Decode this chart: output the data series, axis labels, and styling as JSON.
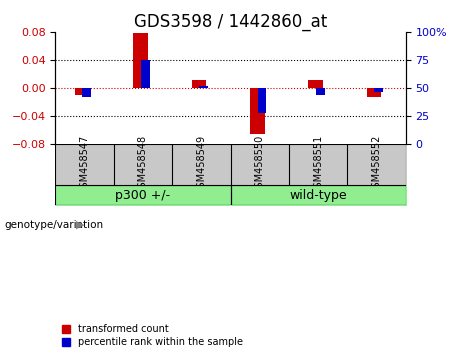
{
  "title": "GDS3598 / 1442860_at",
  "samples": [
    "GSM458547",
    "GSM458548",
    "GSM458549",
    "GSM458550",
    "GSM458551",
    "GSM458552"
  ],
  "red_values": [
    -0.01,
    0.079,
    0.012,
    -0.065,
    0.012,
    -0.012
  ],
  "blue_percentiles": [
    42,
    75,
    52,
    28,
    44,
    47
  ],
  "ylim_left": [
    -0.08,
    0.08
  ],
  "ylim_right": [
    0,
    100
  ],
  "left_yticks": [
    -0.08,
    -0.04,
    0,
    0.04,
    0.08
  ],
  "right_yticks": [
    0,
    25,
    50,
    75,
    100
  ],
  "right_yticklabels": [
    "0",
    "25",
    "50",
    "75",
    "100%"
  ],
  "groups": [
    {
      "label": "p300 +/-",
      "indices": [
        0,
        1,
        2
      ],
      "color": "#90EE90"
    },
    {
      "label": "wild-type",
      "indices": [
        3,
        4,
        5
      ],
      "color": "#90EE90"
    }
  ],
  "red_color": "#CC0000",
  "blue_color": "#0000CC",
  "red_bar_width": 0.25,
  "blue_bar_width": 0.15,
  "grid_color": "black",
  "zero_line_color": "#CC0000",
  "plot_bg_color": "white",
  "sample_box_color": "#C8C8C8",
  "group_box_color": "#90EE90",
  "legend_red_label": "transformed count",
  "legend_blue_label": "percentile rank within the sample",
  "title_fontsize": 12,
  "tick_fontsize": 8,
  "label_fontsize": 7,
  "group_fontsize": 9,
  "legend_fontsize": 7,
  "genotype_label": "genotype/variation"
}
